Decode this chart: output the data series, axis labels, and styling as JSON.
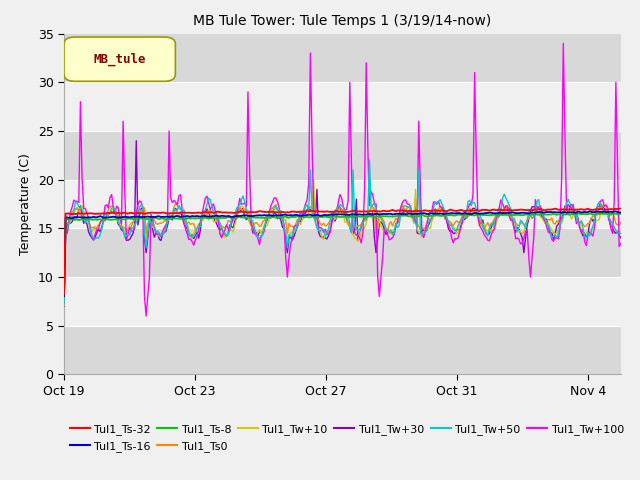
{
  "title": "MB Tule Tower: Tule Temps 1 (3/19/14-now)",
  "ylabel": "Temperature (C)",
  "ylim": [
    0,
    35
  ],
  "yticks": [
    0,
    5,
    10,
    15,
    20,
    25,
    30,
    35
  ],
  "bg_light": "#f0f0f0",
  "bg_dark": "#d8d8d8",
  "grid_color": "#ffffff",
  "xticklabels": [
    "Oct 19",
    "Oct 23",
    "Oct 27",
    "Oct 31",
    "Nov 4"
  ],
  "xtick_positions": [
    0,
    4,
    8,
    12,
    16
  ],
  "legend_label": "MB_tule",
  "legend_box_facecolor": "#ffffcc",
  "legend_box_edgecolor": "#999900",
  "legend_text_color": "#880000",
  "series_colors": {
    "Tul1_Ts-32": "#ff0000",
    "Tul1_Ts-16": "#0000cc",
    "Tul1_Ts-8": "#00cc00",
    "Tul1_Ts0": "#ff8800",
    "Tul1_Tw+10": "#cccc00",
    "Tul1_Tw+30": "#8800cc",
    "Tul1_Tw+50": "#00cccc",
    "Tul1_Tw+100": "#ff00ff"
  },
  "legend_order": [
    [
      "Tul1_Ts-32",
      "#ff0000"
    ],
    [
      "Tul1_Ts-16",
      "#0000cc"
    ],
    [
      "Tul1_Ts-8",
      "#00cc00"
    ],
    [
      "Tul1_Ts0",
      "#ff8800"
    ],
    [
      "Tul1_Tw+10",
      "#cccc00"
    ],
    [
      "Tul1_Tw+30",
      "#8800cc"
    ],
    [
      "Tul1_Tw+50",
      "#00cccc"
    ],
    [
      "Tul1_Tw+100",
      "#ff00ff"
    ]
  ]
}
